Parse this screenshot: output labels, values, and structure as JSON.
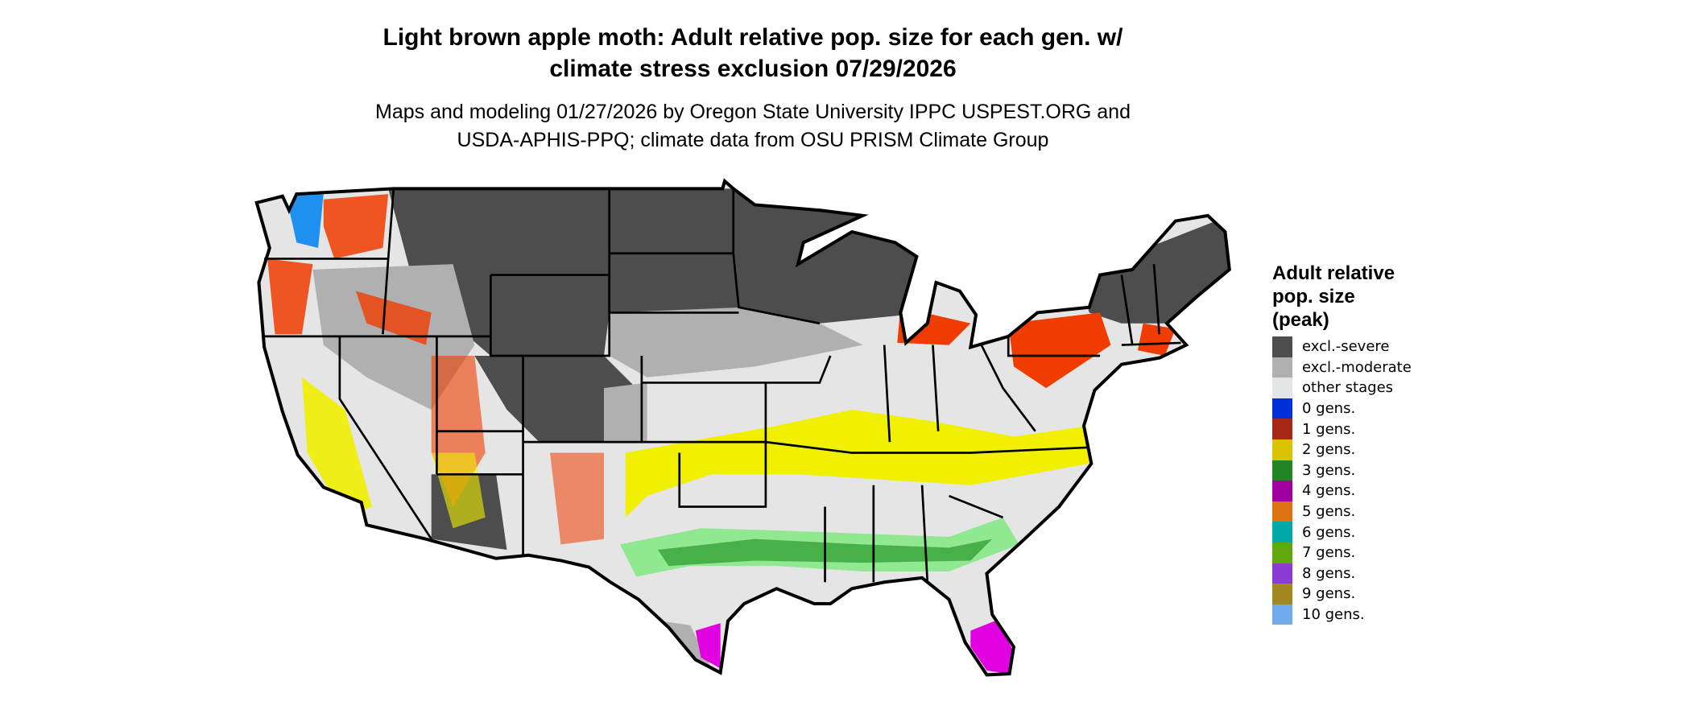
{
  "title": {
    "line1": "Light brown apple moth: Adult relative pop. size for each gen. w/",
    "line2": "climate stress exclusion 07/29/2026"
  },
  "subtitle": {
    "line1": "Maps and modeling 01/27/2026 by Oregon State University IPPC USPEST.ORG and",
    "line2": "USDA-APHIS-PPQ; climate data from OSU PRISM Climate Group"
  },
  "legend": {
    "title_lines": [
      "Adult relative",
      "pop. size",
      "(peak)"
    ],
    "items": [
      {
        "label": "excl.-severe",
        "color": "#4d4d4d"
      },
      {
        "label": "excl.-moderate",
        "color": "#b0b0b0"
      },
      {
        "label": "other stages",
        "color": "#e5e5e5"
      },
      {
        "label": "0 gens.",
        "color": "#0030d8"
      },
      {
        "label": "1 gens.",
        "color": "#a82818"
      },
      {
        "label": "2 gens.",
        "color": "#d8c400"
      },
      {
        "label": "3 gens.",
        "color": "#238423"
      },
      {
        "label": "4 gens.",
        "color": "#a000a0"
      },
      {
        "label": "5 gens.",
        "color": "#dc7414"
      },
      {
        "label": "6 gens.",
        "color": "#00a8a8"
      },
      {
        "label": "7 gens.",
        "color": "#60a810"
      },
      {
        "label": "8 gens.",
        "color": "#8a3cd4"
      },
      {
        "label": "9 gens.",
        "color": "#a08a20"
      },
      {
        "label": "10 gens.",
        "color": "#70acec"
      }
    ]
  },
  "map_colors": {
    "background_land": "#e5e5e5",
    "severe": "#4d4d4d",
    "moderate": "#b0b0b0",
    "red_zone": "#f03c00",
    "yellow_zone": "#f0f000",
    "green_light": "#90e890",
    "green_dark": "#48b048",
    "magenta_zone": "#e000e0",
    "blue_zone": "#2090f0",
    "border": "#000000"
  }
}
